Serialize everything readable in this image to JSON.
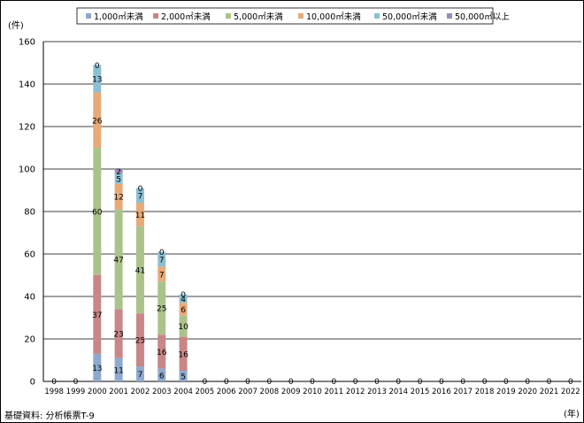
{
  "chart_data": {
    "type": "bar",
    "stacked": true,
    "title": "",
    "y_unit_label": "(件)",
    "x_unit_label": "(年)",
    "ylim": [
      0,
      160
    ],
    "y_ticks": [
      0,
      20,
      40,
      60,
      80,
      100,
      120,
      140,
      160
    ],
    "grid": true,
    "legend_position": "top",
    "categories": [
      "1998",
      "1999",
      "2000",
      "2001",
      "2002",
      "2003",
      "2004",
      "2005",
      "2006",
      "2007",
      "2008",
      "2009",
      "2010",
      "2011",
      "2012",
      "2013",
      "2014",
      "2015",
      "2016",
      "2017",
      "2018",
      "2019",
      "2020",
      "2021",
      "2022"
    ],
    "series": [
      {
        "name": "1,000㎡未満",
        "color": "#8EA9CF",
        "values": [
          0,
          0,
          13,
          11,
          7,
          6,
          5,
          0,
          0,
          0,
          0,
          0,
          0,
          0,
          0,
          0,
          0,
          0,
          0,
          0,
          0,
          0,
          0,
          0,
          0
        ]
      },
      {
        "name": "2,000㎡未満",
        "color": "#C98686",
        "values": [
          0,
          0,
          37,
          23,
          25,
          16,
          16,
          0,
          0,
          0,
          0,
          0,
          0,
          0,
          0,
          0,
          0,
          0,
          0,
          0,
          0,
          0,
          0,
          0,
          0
        ]
      },
      {
        "name": "5,000㎡未満",
        "color": "#ABC38A",
        "values": [
          0,
          0,
          60,
          47,
          41,
          25,
          10,
          0,
          0,
          0,
          0,
          0,
          0,
          0,
          0,
          0,
          0,
          0,
          0,
          0,
          0,
          0,
          0,
          0,
          0
        ]
      },
      {
        "name": "10,000㎡未満",
        "color": "#E8AA78",
        "values": [
          0,
          0,
          26,
          12,
          11,
          7,
          6,
          0,
          0,
          0,
          0,
          0,
          0,
          0,
          0,
          0,
          0,
          0,
          0,
          0,
          0,
          0,
          0,
          0,
          0
        ]
      },
      {
        "name": "50,000㎡未満",
        "color": "#8CBFD1",
        "values": [
          0,
          0,
          13,
          5,
          7,
          7,
          4,
          0,
          0,
          0,
          0,
          0,
          0,
          0,
          0,
          0,
          0,
          0,
          0,
          0,
          0,
          0,
          0,
          0,
          0
        ]
      },
      {
        "name": "50,000㎡以上",
        "color": "#9B8CBA",
        "values": [
          0,
          0,
          0,
          2,
          0,
          0,
          0,
          0,
          0,
          0,
          0,
          0,
          0,
          0,
          0,
          0,
          0,
          0,
          0,
          0,
          0,
          0,
          0,
          0,
          0
        ]
      }
    ]
  },
  "source": "基礎資料: 分析帳票T-9"
}
